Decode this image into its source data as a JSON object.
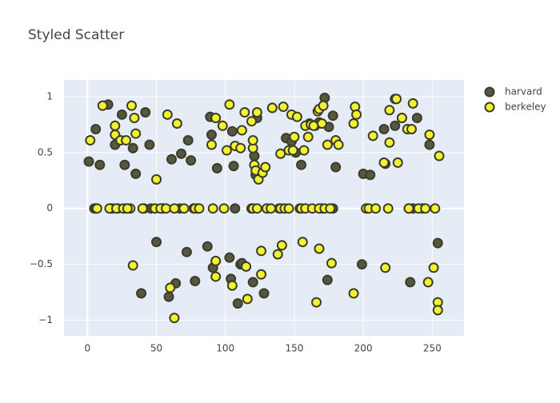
{
  "chart_data": {
    "type": "scatter",
    "title": "Styled Scatter",
    "xlim": [
      -17,
      273
    ],
    "ylim": [
      -1.14,
      1.15
    ],
    "xticks": [
      0,
      50,
      100,
      150,
      200,
      250
    ],
    "yticks": [
      {
        "value": -1,
        "label": "−1"
      },
      {
        "value": -0.5,
        "label": "−0.5"
      },
      0,
      0.5,
      1
    ],
    "grid": true,
    "legend": "right",
    "series": [
      {
        "name": "harvard",
        "color": "#55573f",
        "line_color": "#3c3c2c",
        "x": [
          1,
          6,
          9,
          15,
          17,
          20,
          25,
          27,
          33,
          35,
          39,
          42,
          45,
          50,
          59,
          61,
          64,
          68,
          72,
          73,
          75,
          78,
          87,
          89,
          90,
          91,
          94,
          103,
          104,
          105,
          106,
          109,
          111,
          112,
          120,
          121,
          122,
          123,
          128,
          134,
          144,
          148,
          151,
          155,
          161,
          165,
          168,
          172,
          174,
          175,
          178,
          180,
          200,
          199,
          205,
          215,
          216,
          223,
          223,
          228,
          233,
          234,
          239,
          248,
          254,
          5,
          18,
          22,
          28,
          46,
          55,
          67,
          77,
          107,
          119,
          139,
          154,
          170,
          178,
          203,
          236,
          243
        ],
        "y": [
          0.42,
          0.71,
          0.39,
          0.93,
          0,
          0.57,
          0.84,
          0.39,
          0.54,
          0.31,
          -0.76,
          0.86,
          0.57,
          -0.3,
          -0.79,
          0.44,
          -0.67,
          0.49,
          -0.39,
          0.61,
          0.43,
          -0.65,
          -0.34,
          0.82,
          0.66,
          -0.53,
          0.36,
          -0.44,
          -0.63,
          0.69,
          0.38,
          -0.85,
          -0.5,
          -0.49,
          -0.66,
          0.47,
          0.3,
          0.81,
          -0.76,
          0.9,
          0.63,
          0.6,
          0.5,
          0.39,
          0.76,
          0.74,
          0.77,
          0.99,
          -0.64,
          0.73,
          0.83,
          0.37,
          0.31,
          -0.5,
          0.3,
          0.71,
          0.4,
          0.74,
          0.98,
          0.81,
          0,
          -0.66,
          0.81,
          0.57,
          -0.31,
          0,
          0,
          0,
          0,
          0,
          0,
          0,
          0,
          0,
          0,
          0,
          0,
          0,
          0,
          0,
          0,
          0
        ]
      },
      {
        "name": "berkeley",
        "color": "#f2f230",
        "line_color": "#3c3c2c",
        "x": [
          2,
          6,
          11,
          20,
          20,
          24,
          28,
          31,
          32,
          33,
          34,
          35,
          41,
          50,
          54,
          58,
          60,
          63,
          65,
          80,
          90,
          93,
          93,
          93,
          98,
          101,
          103,
          105,
          107,
          111,
          112,
          114,
          115,
          116,
          119,
          120,
          120,
          121,
          122,
          124,
          123,
          126,
          126,
          127,
          129,
          134,
          138,
          140,
          141,
          142,
          146,
          148,
          149,
          150,
          152,
          156,
          157,
          158,
          160,
          162,
          164,
          166,
          167,
          168,
          168,
          170,
          171,
          174,
          177,
          180,
          182,
          193,
          193,
          194,
          195,
          207,
          215,
          216,
          219,
          219,
          224,
          225,
          228,
          232,
          235,
          236,
          247,
          248,
          251,
          254,
          254,
          255,
          7,
          16,
          21,
          26,
          29,
          40,
          49,
          53,
          57,
          63,
          70,
          78,
          81,
          91,
          99,
          120,
          123,
          130,
          133,
          140,
          143,
          146,
          155,
          158,
          163,
          168,
          172,
          176,
          202,
          204,
          209,
          218,
          233,
          240,
          245,
          252
        ],
        "y": [
          0.61,
          0,
          0.92,
          0.74,
          0.66,
          0.61,
          0.61,
          0,
          0.92,
          -0.51,
          0.81,
          0.67,
          0,
          0.26,
          0,
          0.84,
          -0.71,
          -0.98,
          0.76,
          0,
          0.57,
          0.81,
          -0.47,
          -0.61,
          0.74,
          0.52,
          0.93,
          -0.69,
          0.56,
          0.54,
          0.7,
          0.86,
          -0.52,
          -0.81,
          0.78,
          0.54,
          0.61,
          0.39,
          0.34,
          0.26,
          0.86,
          -0.59,
          -0.38,
          0.32,
          0.37,
          0.9,
          -0.41,
          0.49,
          -0.33,
          0.91,
          0.52,
          0.84,
          0.52,
          0.64,
          0.82,
          -0.3,
          0.52,
          0.74,
          0.64,
          0.75,
          0.74,
          -0.84,
          0.87,
          -0.36,
          0.89,
          0.76,
          0.92,
          0.57,
          -0.49,
          0.61,
          0.57,
          -0.76,
          0.76,
          0.91,
          0.84,
          0.65,
          0.41,
          -0.53,
          0.59,
          0.88,
          0.98,
          0.41,
          0.81,
          0.71,
          0.71,
          0.94,
          -0.66,
          0.66,
          -0.53,
          -0.84,
          -0.91,
          0.47,
          0,
          0,
          0,
          0,
          0,
          0,
          0,
          0,
          0,
          0,
          0,
          0,
          0,
          0,
          0,
          0,
          0,
          0,
          0,
          0,
          0,
          0,
          0,
          0,
          0,
          0,
          0,
          0,
          0,
          0,
          0,
          0,
          0,
          0,
          0,
          0
        ]
      }
    ]
  }
}
